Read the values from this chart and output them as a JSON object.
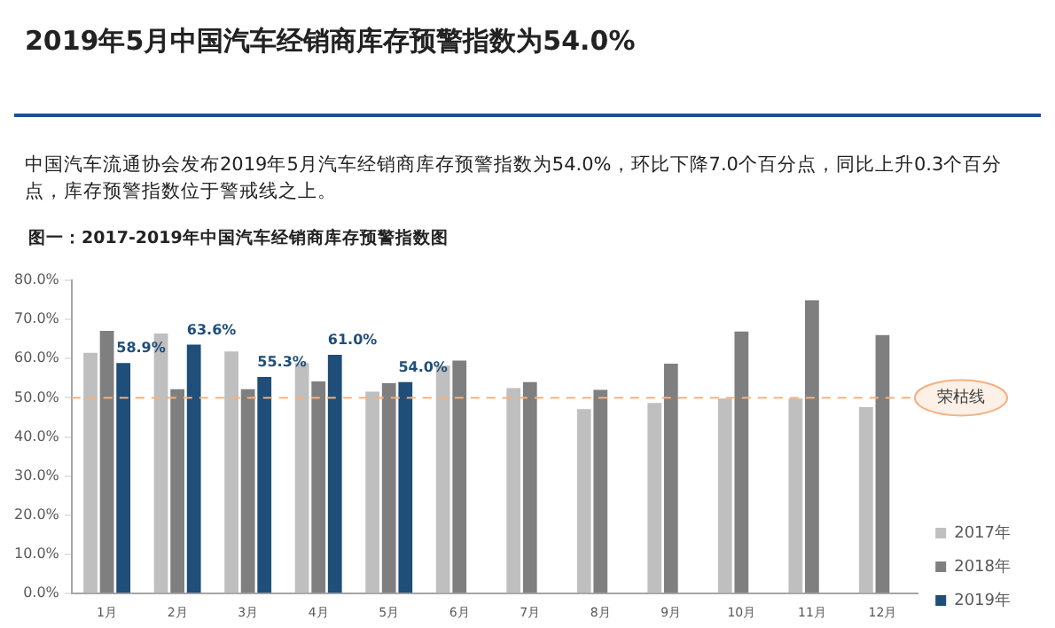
{
  "chart_data": {
    "type": "bar",
    "title": "2019年5月中国汽车经销商库存预警指数为54.0%",
    "subtitle": "中国汽车流通协会发布2019年5月汽车经销商库存预警指数为54.0%，环比下降7.0个百分点，同比上升0.3个百分点，库存预警指数位于警戒线之上。",
    "annotations": [
      "图一：2017-2019年中国汽车经销商库存预警指数图"
    ],
    "categories": [
      "1月",
      "2月",
      "3月",
      "4月",
      "5月",
      "6月",
      "7月",
      "8月",
      "9月",
      "10月",
      "11月",
      "12月"
    ],
    "series": [
      {
        "name": "2017年",
        "color": "#bfbfbf",
        "values": [
          61.5,
          66.4,
          61.8,
          58.9,
          51.6,
          58.2,
          52.5,
          47.1,
          48.7,
          49.8,
          49.8,
          47.6
        ]
      },
      {
        "name": "2018年",
        "color": "#7f7f7f",
        "values": [
          67.1,
          52.2,
          52.2,
          54.2,
          53.7,
          59.5,
          54.0,
          52.0,
          58.7,
          66.9,
          74.9,
          66.0
        ]
      },
      {
        "name": "2019年",
        "color": "#1f4e79",
        "values": [
          58.9,
          63.6,
          55.3,
          61.0,
          54.0,
          null,
          null,
          null,
          null,
          null,
          null,
          null
        ],
        "value_labels": [
          "58.9%",
          "63.6%",
          "55.3%",
          "61.0%",
          "54.0%",
          null,
          null,
          null,
          null,
          null,
          null,
          null
        ]
      }
    ],
    "ylim": [
      0,
      80
    ],
    "yticks": [
      {
        "value": 0,
        "label": "0.0%"
      },
      {
        "value": 10,
        "label": "10.0%"
      },
      {
        "value": 20,
        "label": "20.0%"
      },
      {
        "value": 30,
        "label": "30.0%"
      },
      {
        "value": 40,
        "label": "40.0%"
      },
      {
        "value": 50,
        "label": "50.0%"
      },
      {
        "value": 60,
        "label": "60.0%"
      },
      {
        "value": 70,
        "label": "70.0%"
      },
      {
        "value": 80,
        "label": "80.0%"
      }
    ],
    "ref_lines": [
      {
        "axis": "y",
        "value": 50,
        "label": "荣枯线",
        "color": "#f4b183",
        "line_style": "dashed"
      }
    ],
    "grid": false,
    "legend": "right"
  }
}
